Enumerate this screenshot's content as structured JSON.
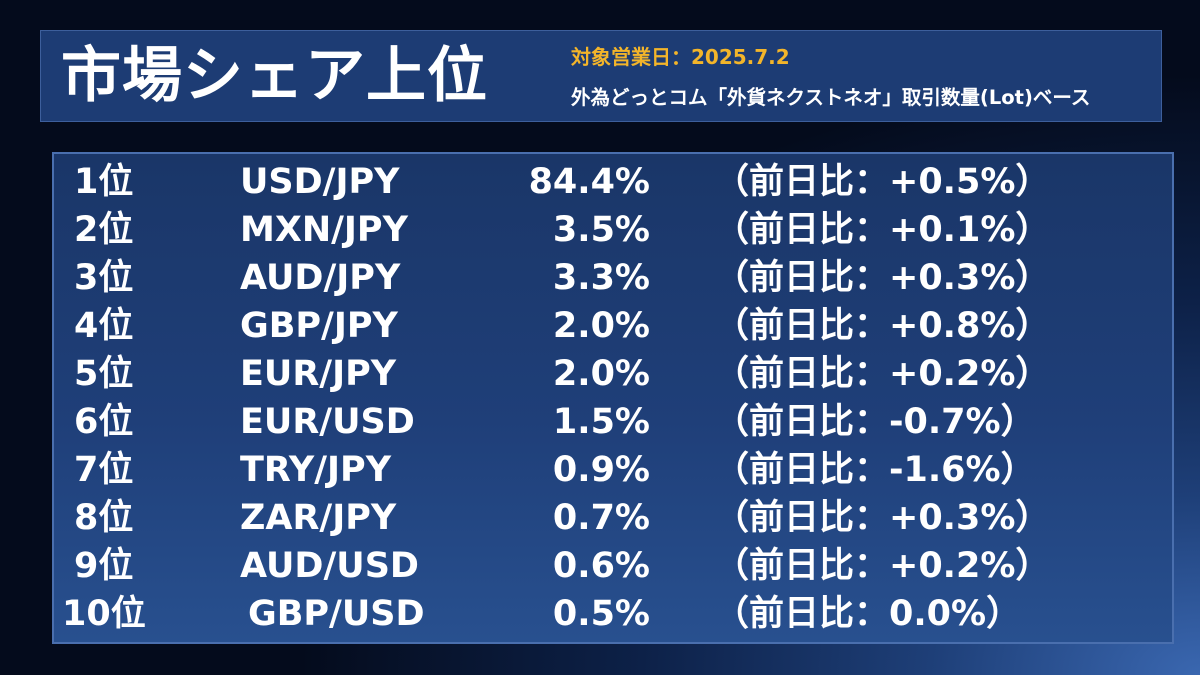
{
  "header": {
    "title": "市場シェア上位",
    "date_label": "対象営業日：",
    "date_value": "2025.7.2",
    "basis": "外為どっとコム「外貨ネクストネオ」取引数量(Lot)ベース"
  },
  "rows": [
    {
      "rank": "1位",
      "pair": "USD/JPY",
      "share": "84.4%",
      "change": "（前日比：+0.5%）"
    },
    {
      "rank": "2位",
      "pair": "MXN/JPY",
      "share": "3.5%",
      "change": "（前日比：+0.1%）"
    },
    {
      "rank": "3位",
      "pair": "AUD/JPY",
      "share": "3.3%",
      "change": "（前日比：+0.3%）"
    },
    {
      "rank": "4位",
      "pair": "GBP/JPY",
      "share": "2.0%",
      "change": "（前日比：+0.8%）"
    },
    {
      "rank": "5位",
      "pair": "EUR/JPY",
      "share": "2.0%",
      "change": "（前日比：+0.2%）"
    },
    {
      "rank": "6位",
      "pair": "EUR/USD",
      "share": "1.5%",
      "change": "（前日比：-0.7%）"
    },
    {
      "rank": "7位",
      "pair": "TRY/JPY",
      "share": "0.9%",
      "change": "（前日比：-1.6%）"
    },
    {
      "rank": "8位",
      "pair": "ZAR/JPY",
      "share": "0.7%",
      "change": "（前日比：+0.3%）"
    },
    {
      "rank": "9位",
      "pair": "AUD/USD",
      "share": "0.6%",
      "change": "（前日比：+0.2%）"
    },
    {
      "rank": "10位",
      "pair": "GBP/USD",
      "share": "0.5%",
      "change": "（前日比：0.0%）"
    }
  ]
}
